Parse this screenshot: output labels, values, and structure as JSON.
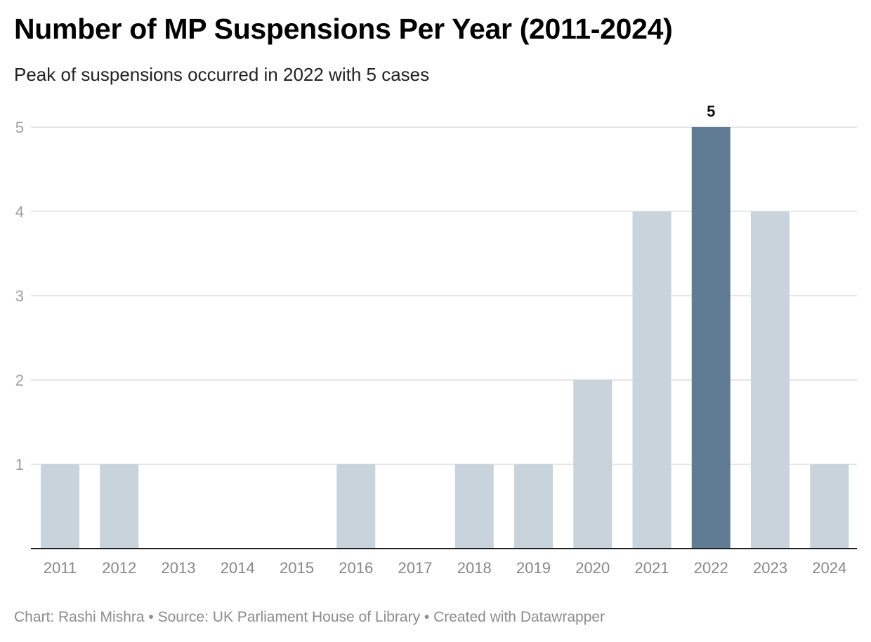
{
  "header": {
    "title": "Number of MP Suspensions Per Year (2011-2024)",
    "subtitle": "Peak of suspensions occurred in 2022 with 5 cases"
  },
  "footer": {
    "text": "Chart: Rashi Mishra • Source: UK Parliament House of Library • Created with Datawrapper"
  },
  "chart_data": {
    "type": "bar",
    "title": "Number of MP Suspensions Per Year (2011-2024)",
    "subtitle": "Peak of suspensions occurred in 2022 with 5 cases",
    "xlabel": "",
    "ylabel": "",
    "categories": [
      "2011",
      "2012",
      "2013",
      "2014",
      "2015",
      "2016",
      "2017",
      "2018",
      "2019",
      "2020",
      "2021",
      "2022",
      "2023",
      "2024"
    ],
    "values": [
      1,
      1,
      0,
      0,
      0,
      1,
      0,
      1,
      1,
      2,
      4,
      5,
      4,
      1
    ],
    "ylim": [
      0,
      5
    ],
    "yticks": [
      "1",
      "2",
      "3",
      "4",
      "5"
    ],
    "grid": true,
    "highlight_category": "2022",
    "data_labels": [
      {
        "category": "2022",
        "text": "5"
      }
    ],
    "colors": {
      "bar": "#c9d3dc",
      "highlight": "#5f7c94",
      "grid": "#dddddd",
      "axis": "#222222"
    }
  }
}
